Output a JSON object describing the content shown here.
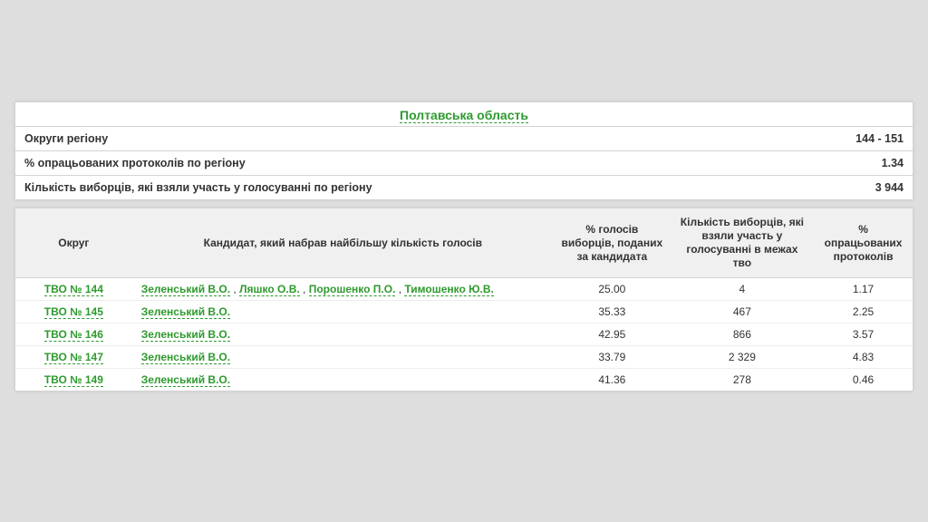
{
  "colors": {
    "page_bg": "#dedede",
    "card_bg": "#ffffff",
    "border": "#d3d3d3",
    "header_bg": "#f0f0f0",
    "link_green": "#2e9a2e",
    "text": "#333333"
  },
  "title": "Полтавська область",
  "summary": [
    {
      "label": "Округи регіону",
      "value": "144 - 151"
    },
    {
      "label": "% опрацьованих протоколів по регіону",
      "value": "1.34"
    },
    {
      "label": "Кількість виборців, які взяли участь у голосуванні по регіону",
      "value": "3 944"
    }
  ],
  "columns": [
    "Округ",
    "Кандидат, який набрав найбільшу кількість голосів",
    "% голосів виборців, поданих за кандидата",
    "Кількість виборців, які взяли участь у голосуванні в межах тво",
    "% опрацьованих протоколів"
  ],
  "col_widths": [
    "13%",
    "47%",
    "13%",
    "16%",
    "11%"
  ],
  "rows": [
    {
      "okrug": "ТВО № 144",
      "candidates": [
        "Зеленський В.О.",
        "Ляшко О.В.",
        "Порошенко П.О.",
        "Тимошенко Ю.В."
      ],
      "pct_votes": "25.00",
      "voters": "4",
      "pct_processed": "1.17"
    },
    {
      "okrug": "ТВО № 145",
      "candidates": [
        "Зеленський В.О."
      ],
      "pct_votes": "35.33",
      "voters": "467",
      "pct_processed": "2.25"
    },
    {
      "okrug": "ТВО № 146",
      "candidates": [
        "Зеленський В.О."
      ],
      "pct_votes": "42.95",
      "voters": "866",
      "pct_processed": "3.57"
    },
    {
      "okrug": "ТВО № 147",
      "candidates": [
        "Зеленський В.О."
      ],
      "pct_votes": "33.79",
      "voters": "2 329",
      "pct_processed": "4.83"
    },
    {
      "okrug": "ТВО № 149",
      "candidates": [
        "Зеленський В.О."
      ],
      "pct_votes": "41.36",
      "voters": "278",
      "pct_processed": "0.46"
    }
  ]
}
